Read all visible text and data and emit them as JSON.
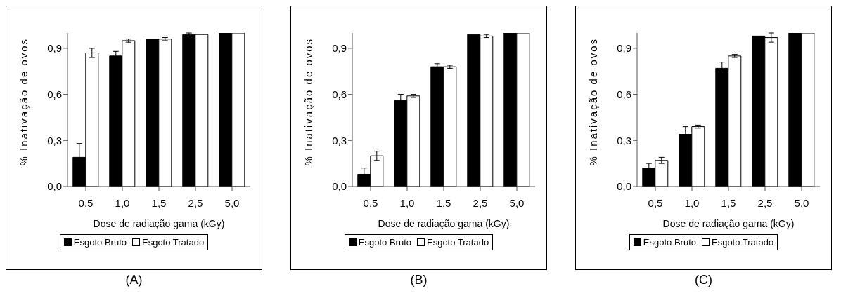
{
  "chart_data": [
    {
      "type": "bar",
      "xlabel": "Dose de radiação gama (kGy)",
      "ylabel": "% Inativação de ovos",
      "categories": [
        "0,5",
        "1,0",
        "1,5",
        "2,5",
        "5,0"
      ],
      "ylim": [
        0,
        1
      ],
      "yticks": [
        {
          "value": 0,
          "label": "0,0"
        },
        {
          "value": 0.3,
          "label": "0,3"
        },
        {
          "value": 0.6,
          "label": "0,6"
        },
        {
          "value": 0.9,
          "label": "0,9"
        }
      ],
      "grid": false,
      "legend": "bottom",
      "annotations": [
        "(A)"
      ],
      "series": [
        {
          "name": "Esgoto Bruto",
          "color": "#000000",
          "values": [
            0.19,
            0.85,
            0.96,
            0.99,
            1.0
          ],
          "errors": [
            0.09,
            0.03,
            null,
            0.01,
            null
          ]
        },
        {
          "name": "Esgoto Tratado",
          "color": "#ffffff",
          "values": [
            0.87,
            0.95,
            0.96,
            0.99,
            1.0
          ],
          "errors": [
            0.03,
            0.01,
            0.01,
            null,
            null
          ]
        }
      ]
    },
    {
      "type": "bar",
      "xlabel": "Dose de radiação gama (kGy)",
      "ylabel": "% Inativação de ovos",
      "categories": [
        "0,5",
        "1,0",
        "1,5",
        "2,5",
        "5,0"
      ],
      "ylim": [
        0,
        1
      ],
      "yticks": [
        {
          "value": 0,
          "label": "0,0"
        },
        {
          "value": 0.3,
          "label": "0,3"
        },
        {
          "value": 0.6,
          "label": "0,6"
        },
        {
          "value": 0.9,
          "label": "0,9"
        }
      ],
      "grid": false,
      "legend": "bottom",
      "annotations": [
        "(B)"
      ],
      "series": [
        {
          "name": "Esgoto Bruto",
          "color": "#000000",
          "values": [
            0.08,
            0.56,
            0.78,
            0.99,
            1.0
          ],
          "errors": [
            0.04,
            0.04,
            0.02,
            null,
            null
          ]
        },
        {
          "name": "Esgoto Tratado",
          "color": "#ffffff",
          "values": [
            0.2,
            0.59,
            0.78,
            0.98,
            1.0
          ],
          "errors": [
            0.03,
            0.01,
            0.01,
            0.01,
            null
          ]
        }
      ]
    },
    {
      "type": "bar",
      "xlabel": "Dose de radiação gama (kGy)",
      "ylabel": "% Inativação de ovos",
      "categories": [
        "0,5",
        "1,0",
        "1,5",
        "2,5",
        "5,0"
      ],
      "ylim": [
        0,
        1
      ],
      "yticks": [
        {
          "value": 0,
          "label": "0,0"
        },
        {
          "value": 0.3,
          "label": "0,3"
        },
        {
          "value": 0.6,
          "label": "0,6"
        },
        {
          "value": 0.9,
          "label": "0,9"
        }
      ],
      "grid": false,
      "legend": "bottom",
      "annotations": [
        "(C)"
      ],
      "series": [
        {
          "name": "Esgoto Bruto",
          "color": "#000000",
          "values": [
            0.12,
            0.34,
            0.77,
            0.98,
            1.0
          ],
          "errors": [
            0.03,
            0.05,
            0.04,
            null,
            null
          ]
        },
        {
          "name": "Esgoto Tratado",
          "color": "#ffffff",
          "values": [
            0.17,
            0.39,
            0.85,
            0.97,
            1.0
          ],
          "errors": [
            0.02,
            0.01,
            0.01,
            0.03,
            null
          ]
        }
      ]
    }
  ]
}
